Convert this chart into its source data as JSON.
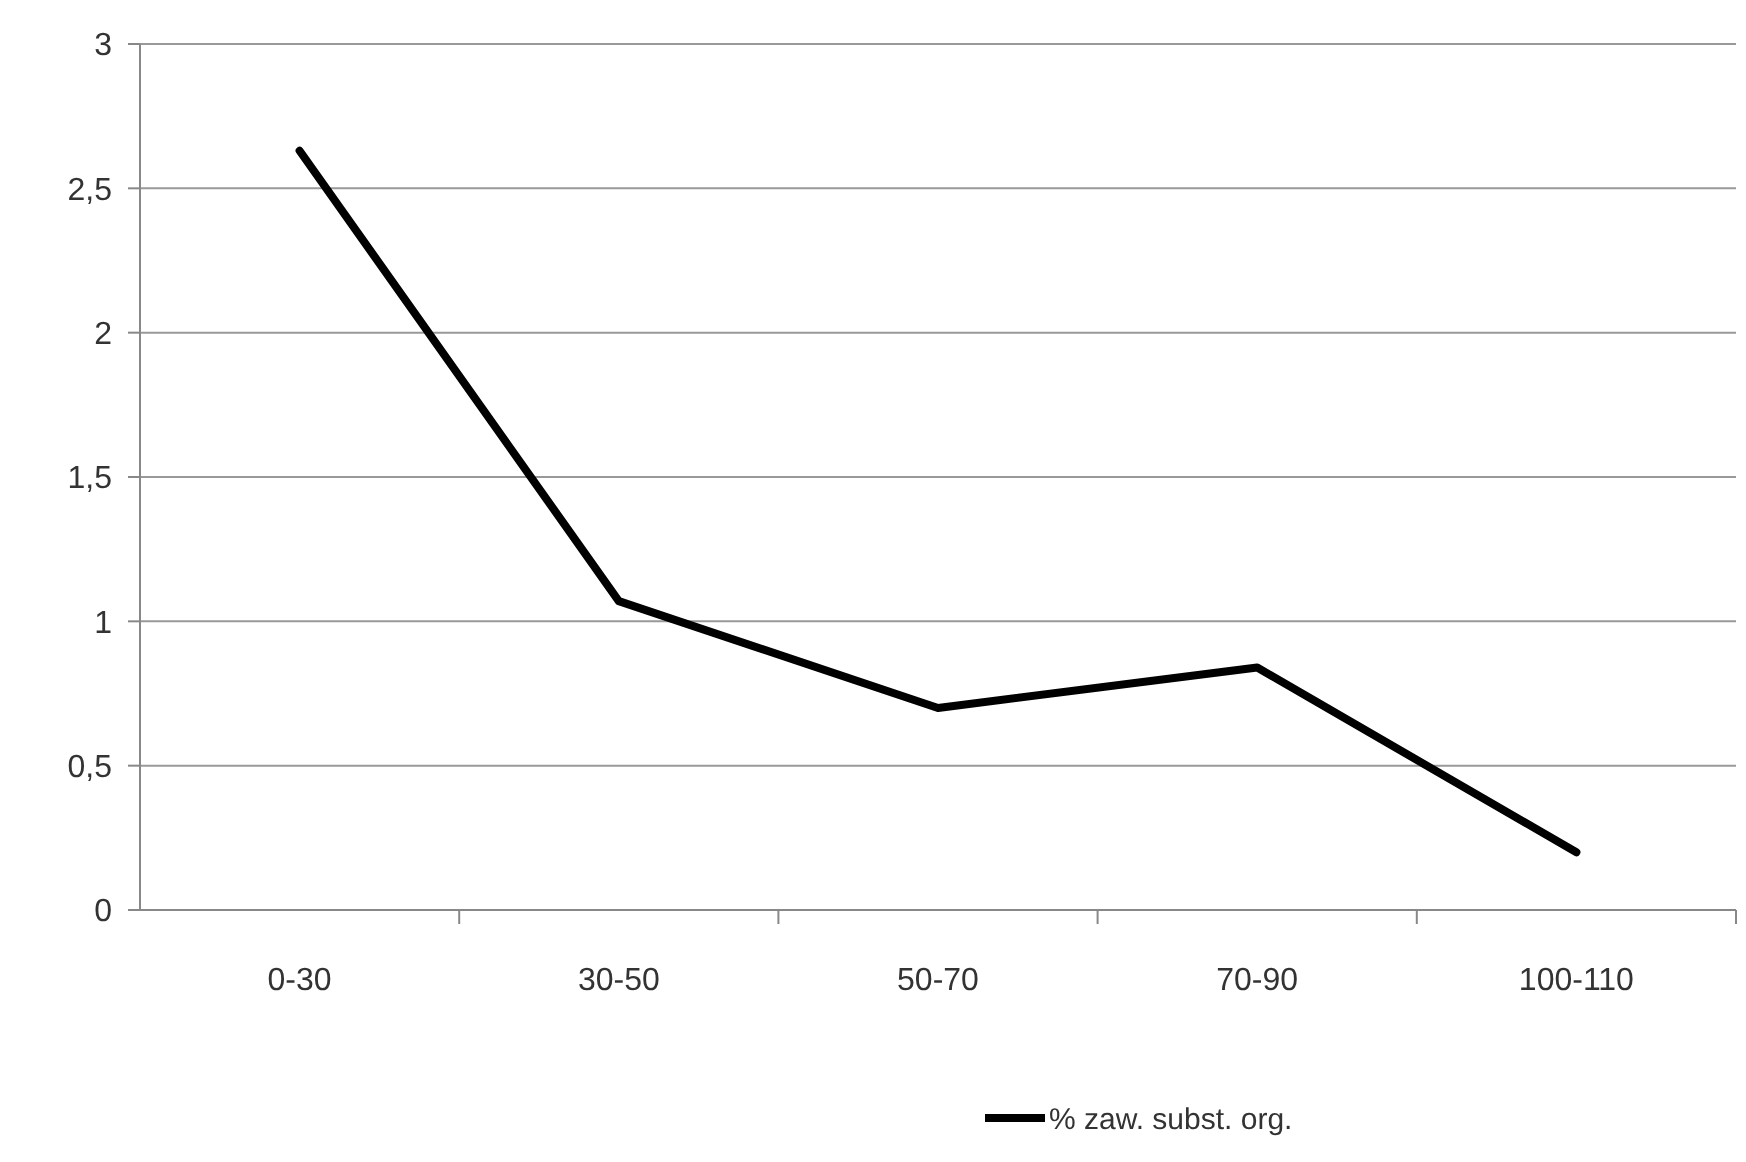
{
  "chart_data": {
    "type": "line",
    "categories": [
      "0-30",
      "30-50",
      "50-70",
      "70-90",
      "100-110"
    ],
    "series": [
      {
        "name": "% zaw. subst. org.",
        "color": "#000000",
        "values": [
          2.63,
          1.07,
          0.7,
          0.84,
          0.2
        ]
      }
    ],
    "ylim": [
      0,
      3
    ],
    "yticks": [
      0,
      {
        "value": 0.5,
        "label": "0,5"
      },
      1,
      {
        "value": 1.5,
        "label": "1,5"
      },
      2,
      {
        "value": 2.5,
        "label": "2,5"
      },
      3
    ],
    "grid": "y",
    "legend": "bottom",
    "marker": "none",
    "line_style": "solid"
  }
}
